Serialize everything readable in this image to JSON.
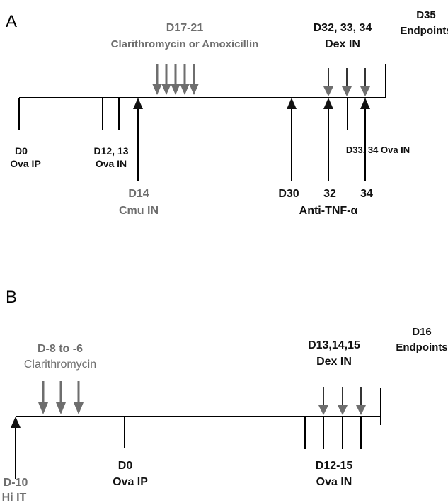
{
  "panel_a": {
    "letter": "A",
    "endpoint_day": "D35",
    "endpoint_label": "Endpoints",
    "antibiotic_days": "D17-21",
    "antibiotic_label": "Clarithromycin or Amoxicillin",
    "dex_days": "D32, 33, 34",
    "dex_label": "Dex IN",
    "d0_day": "D0",
    "d0_label": "Ova IP",
    "d12_day": "D12, 13",
    "d12_label": "Ova IN",
    "d33_label": "D33, 34 Ova IN",
    "d14_day": "D14",
    "d14_label": "Cmu IN",
    "d30_day": "D30",
    "day32": "32",
    "day34": "34",
    "anti_tnf_label": "Anti-TNF-α"
  },
  "panel_b": {
    "letter": "B",
    "endpoint_day": "D16",
    "endpoint_label": "Endpoints",
    "antibiotic_days": "D-8 to -6",
    "antibiotic_label": "Clarithromycin",
    "dex_days": "D13,14,15",
    "dex_label": "Dex IN",
    "dminus10_day": "D-10",
    "dminus10_label": "Hi IT",
    "d0_day": "D0",
    "d0_label": "Ova IP",
    "d12_day": "D12-15",
    "d12_label": "Ova IN"
  },
  "colors": {
    "black": "#111111",
    "gray": "#6e6e6e"
  }
}
